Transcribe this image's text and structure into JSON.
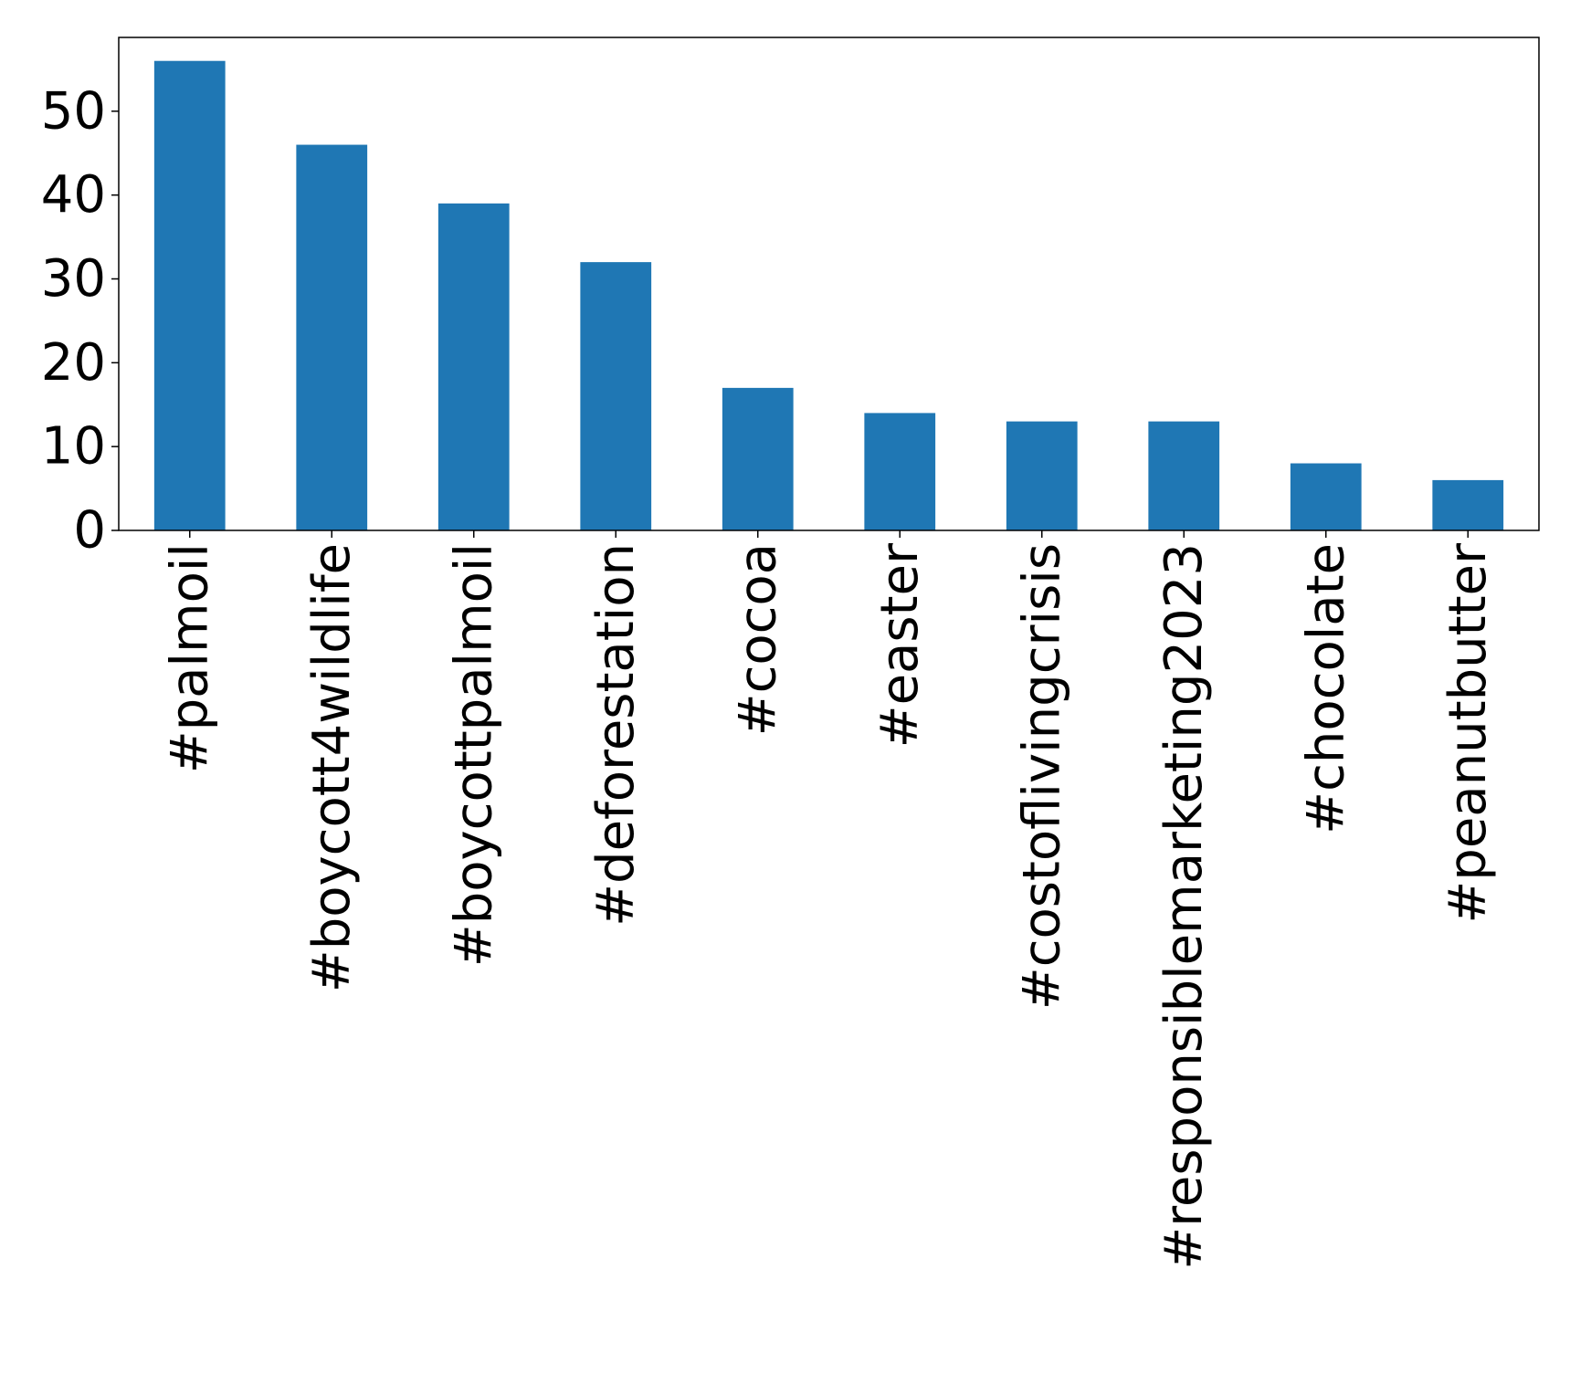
{
  "chart_data": {
    "type": "bar",
    "title": "",
    "xlabel": "",
    "ylabel": "",
    "categories": [
      "#palmoil",
      "#boycott4wildlife",
      "#boycottpalmoil",
      "#deforestation",
      "#cocoa",
      "#easter",
      "#costoflivingcrisis",
      "#responsiblemarketing2023",
      "#chocolate",
      "#peanutbutter"
    ],
    "values": [
      56,
      46,
      39,
      32,
      17,
      14,
      13,
      13,
      8,
      6
    ],
    "ylim": [
      0,
      58.8
    ],
    "yticks": [
      0,
      10,
      20,
      30,
      40,
      50
    ],
    "bar_color": "#1f77b4",
    "grid": false,
    "legend": "none"
  }
}
